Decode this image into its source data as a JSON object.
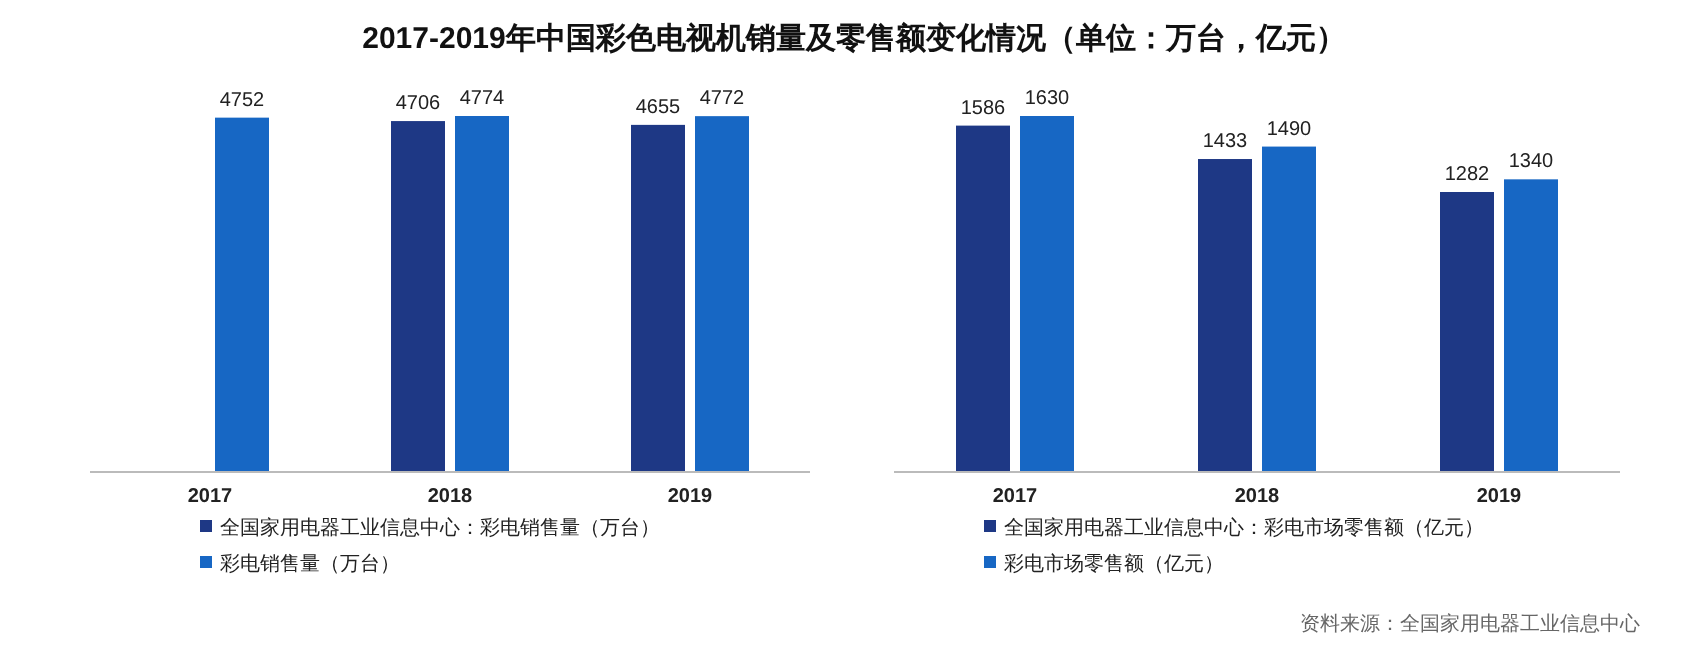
{
  "chart_data": [
    {
      "type": "bar",
      "title": "2017-2019年中国彩色电视机销量及零售额变化情况（单位：万台，亿元）",
      "categories": [
        "2017",
        "2018",
        "2019"
      ],
      "data_labels": true,
      "legend": "bottom",
      "series": [
        {
          "name": "全国家用电器工业信息中心：彩电销售量（万台）",
          "color": "#1e3885",
          "values": [
            null,
            4706,
            4655
          ]
        },
        {
          "name": "彩电销售量（万台）",
          "color": "#1767c4",
          "values": [
            4752,
            4774,
            4772
          ]
        }
      ]
    },
    {
      "type": "bar",
      "categories": [
        "2017",
        "2018",
        "2019"
      ],
      "data_labels": true,
      "legend": "bottom",
      "annotations": [
        "资料来源：全国家用电器工业信息中心"
      ],
      "series": [
        {
          "name": "全国家用电器工业信息中心：彩电市场零售额（亿元）",
          "color": "#1e3885",
          "values": [
            1586,
            1433,
            1282
          ]
        },
        {
          "name": "彩电市场零售额（亿元）",
          "color": "#1767c4",
          "values": [
            1630,
            1490,
            1340
          ]
        }
      ]
    }
  ]
}
